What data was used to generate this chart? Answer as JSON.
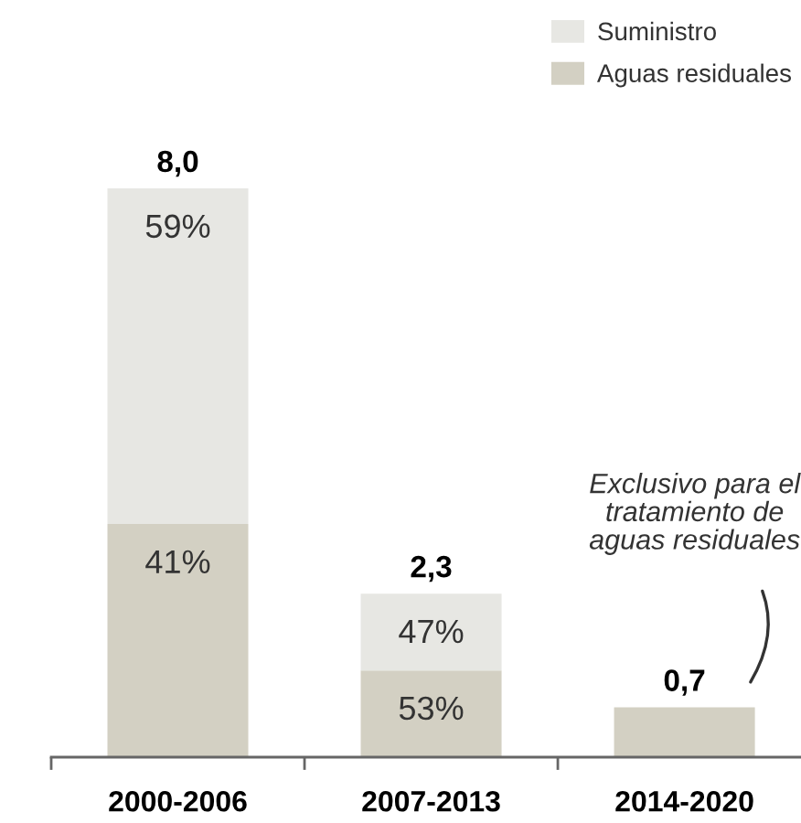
{
  "chart_data": {
    "type": "bar",
    "stacked": true,
    "categories": [
      "2000-2006",
      "2007-2013",
      "2014-2020"
    ],
    "series": [
      {
        "name": "Aguas residuales",
        "color": "#d3d0c3",
        "values": [
          3.28,
          1.22,
          0.7
        ],
        "value_labels": [
          null,
          null,
          "0,7"
        ]
      },
      {
        "name": "Suministro",
        "color": "#e7e7e3",
        "values": [
          4.72,
          1.08,
          null
        ]
      }
    ],
    "totals": [
      "8,0",
      "2,3",
      null
    ],
    "annotations": [
      "Exclusivo para el\ntratamiento de\naguas residuales",
      {
        "text": "59%",
        "x": "2000-2006",
        "y": 8.0
      },
      {
        "text": "41%",
        "x": "2000-2006",
        "y": 3.28
      },
      {
        "text": "47%",
        "x": "2007-2013",
        "y": 2.3
      },
      {
        "text": "53%",
        "x": "2007-2013",
        "y": 1.22
      }
    ],
    "legend": "top right",
    "tick_labels": "x"
  }
}
